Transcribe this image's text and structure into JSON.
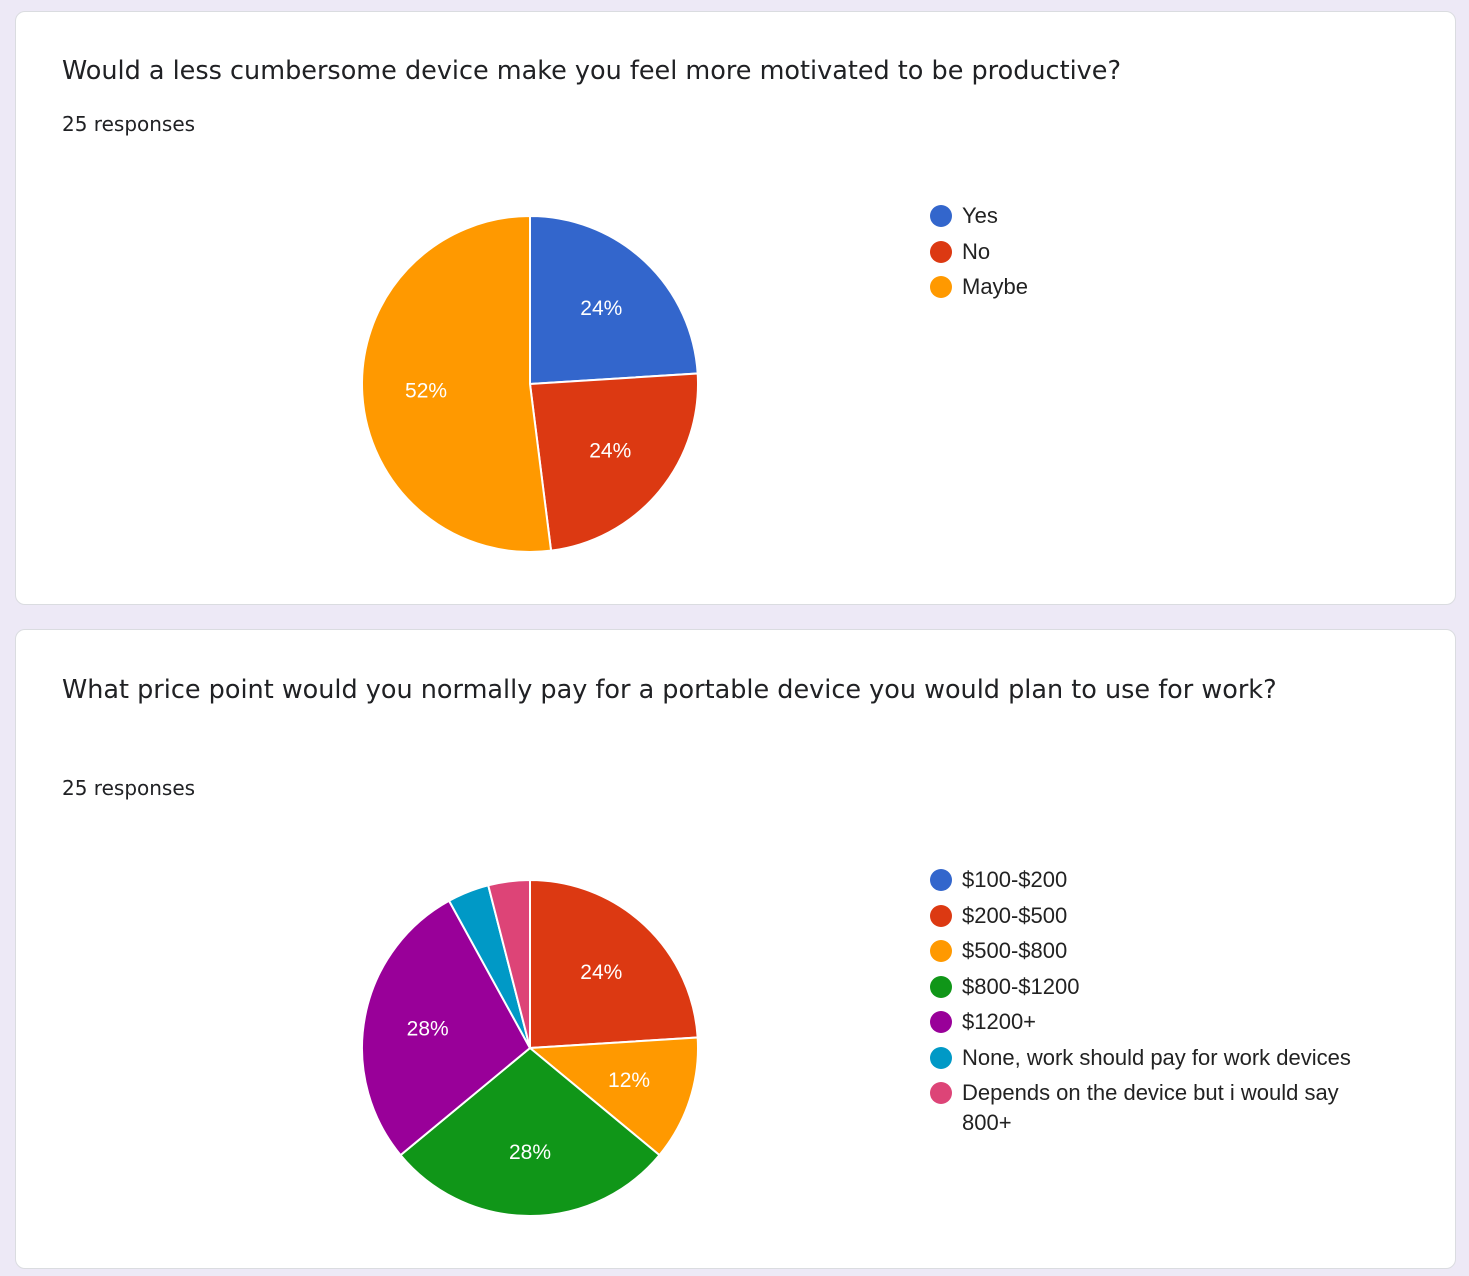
{
  "questions": [
    {
      "question": "Would a less cumbersome device make you feel more motivated to be productive?",
      "responses": "25 responses"
    },
    {
      "question": "What price point would you normally pay for a portable device you would plan to use for work?",
      "responses": "25 responses"
    }
  ],
  "chart_data": [
    {
      "type": "pie",
      "title": "Would a less cumbersome device make you feel more motivated to be productive?",
      "legend_position": "right",
      "start_angle_deg": 90,
      "direction": "clockwise",
      "slices": [
        {
          "label": "Yes",
          "percent": 24,
          "value_label": "24%",
          "color": "#3366cc"
        },
        {
          "label": "No",
          "percent": 24,
          "value_label": "24%",
          "color": "#dc3912"
        },
        {
          "label": "Maybe",
          "percent": 52,
          "value_label": "52%",
          "color": "#ff9900"
        }
      ]
    },
    {
      "type": "pie",
      "title": "What price point would you normally pay for a portable device you would plan to use for work?",
      "legend_position": "right",
      "start_angle_deg": 90,
      "direction": "clockwise",
      "slices": [
        {
          "label": "$100-$200",
          "percent": 0,
          "value_label": "",
          "color": "#3366cc"
        },
        {
          "label": "$200-$500",
          "percent": 24,
          "value_label": "24%",
          "color": "#dc3912"
        },
        {
          "label": "$500-$800",
          "percent": 12,
          "value_label": "12%",
          "color": "#ff9900"
        },
        {
          "label": "$800-$1200",
          "percent": 28,
          "value_label": "28%",
          "color": "#109618"
        },
        {
          "label": "$1200+",
          "percent": 28,
          "value_label": "28%",
          "color": "#990099"
        },
        {
          "label": "None, work should pay for work devices",
          "percent": 4,
          "value_label": "",
          "color": "#0099c6"
        },
        {
          "label": "Depends on the device but i would say 800+",
          "percent": 4,
          "value_label": "",
          "color": "#dd4477"
        }
      ]
    }
  ]
}
